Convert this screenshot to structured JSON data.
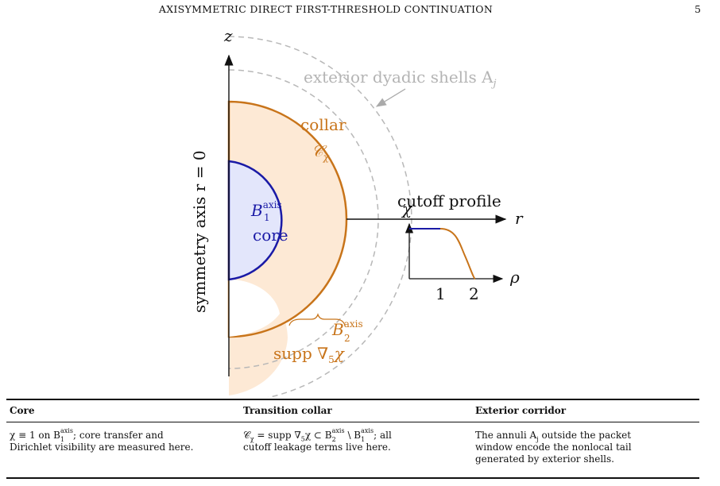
{
  "header": {
    "running_title": "AXISYMMETRIC DIRECT FIRST-THRESHOLD CONTINUATION",
    "page_number": "5"
  },
  "figure": {
    "axis_z": "z",
    "axis_r": "r",
    "axis_rho": "ρ",
    "symmetry_axis_label": "symmetry axis r = 0",
    "exterior_label": "exterior dyadic shells A",
    "exterior_label_sub": "j",
    "collar_word": "collar",
    "collar_symbol": "𝒞",
    "collar_symbol_sub": "χ",
    "core_symbol": "B",
    "core_sup": "axis",
    "core_sub": "1",
    "core_word": "core",
    "b2_symbol": "B",
    "b2_sup": "axis",
    "b2_sub": "2",
    "supp_label": "supp ∇",
    "supp_sub": "5",
    "supp_chi": "χ",
    "cutoff_title": "cutoff profile",
    "cutoff_chi": "χ",
    "tick_1": "1",
    "tick_2": "2",
    "colors": {
      "core_stroke": "#1a1aa6",
      "core_fill": "#e3e6fb",
      "collar_stroke": "#c8741a",
      "collar_fill": "#fde9d5",
      "shell_stroke": "#b8b8b8",
      "shell_text": "#b4b4b4"
    }
  },
  "table": {
    "headers": [
      "Core",
      "Transition collar",
      "Exterior corridor"
    ],
    "core": {
      "l1_a": "χ ≡ 1 on B",
      "l1_sup": "axis",
      "l1_sub": "1",
      "l1_b": "; core transfer and",
      "l2": "Dirichlet visibility are measured here."
    },
    "collar": {
      "l1_a": "𝒞",
      "l1_chisub": "χ",
      "l1_b": " = supp ∇",
      "l1_5": "5",
      "l1_c": "χ ⊂ B",
      "l1_sup2": "axis",
      "l1_sub2": "2",
      "l1_d": " \\ B",
      "l1_sup1": "axis",
      "l1_sub1": "1",
      "l1_e": "; all",
      "l2": "cutoff leakage terms live here."
    },
    "exterior": {
      "l1_a": "The annuli A",
      "l1_sub": "j",
      "l1_b": " outside the packet",
      "l2": "window encode the nonlocal tail",
      "l3": "generated by exterior shells."
    }
  }
}
